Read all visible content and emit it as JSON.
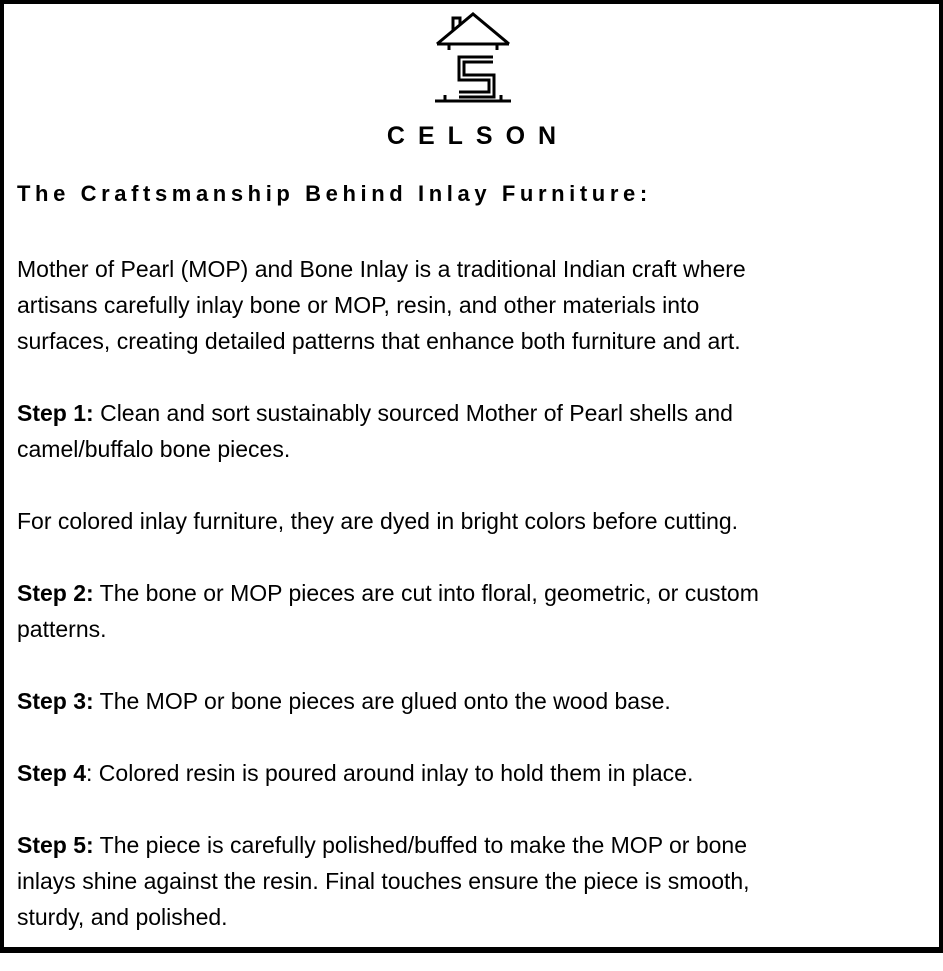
{
  "brand": {
    "name": "CELSON",
    "logo_icon": "house-s-logo-icon"
  },
  "heading": "The Craftsmanship Behind Inlay Furniture:",
  "intro": [
    "Mother of Pearl (MOP) and Bone Inlay is a traditional Indian craft where",
    "artisans carefully inlay bone or MOP, resin, and other materials into",
    "surfaces, creating detailed patterns that enhance both furniture and art."
  ],
  "step1": {
    "label": "Step 1:",
    "lines": [
      " Clean and sort sustainably sourced Mother of Pearl shells and",
      "camel/buffalo bone pieces."
    ]
  },
  "note": "For colored inlay furniture, they are dyed in bright colors before cutting.",
  "step2": {
    "label": "Step 2:",
    "lines": [
      " The bone or MOP pieces are cut into floral, geometric, or custom",
      "patterns."
    ]
  },
  "step3": {
    "label": "Step 3:",
    "lines": [
      " The MOP or bone pieces are glued onto the wood base."
    ]
  },
  "step4": {
    "label": "Step 4",
    "lines": [
      ": Colored resin is poured around inlay to hold them in place."
    ]
  },
  "step5": {
    "label": "Step 5:",
    "lines": [
      " The piece is carefully polished/buffed to make the MOP or bone",
      "inlays shine against the resin. Final touches ensure the piece is smooth,",
      "sturdy, and polished."
    ]
  }
}
